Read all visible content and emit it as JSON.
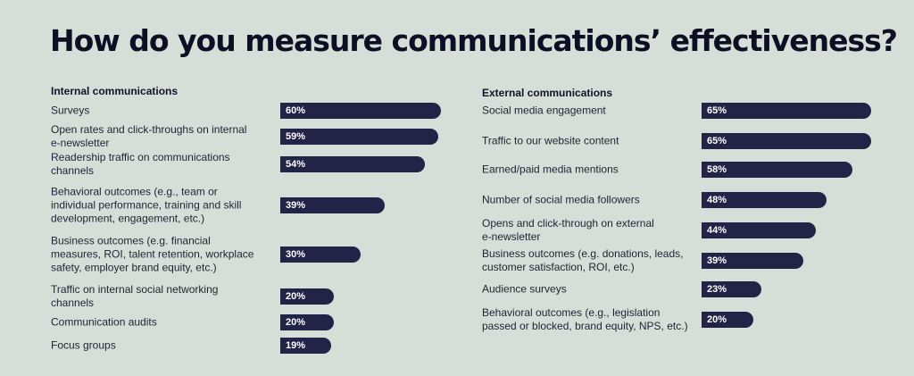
{
  "title": "How do you measure communications’ effectiveness?",
  "chart_data": [
    {
      "type": "bar",
      "title": "Internal communications",
      "categories": [
        "Surveys",
        "Open rates and click-throughs on internal\ne-newsletter",
        "Readership traffic on communications\nchannels",
        "Behavioral outcomes (e.g., team or\nindividual performance, training and skill\ndevelopment, engagement, etc.)",
        "Business outcomes (e.g. financial\nmeasures, ROI, talent retention, workplace\nsafety, employer brand equity, etc.)",
        "Traffic on internal social networking\nchannels",
        "Communication audits",
        "Focus groups"
      ],
      "values": [
        60,
        59,
        54,
        39,
        30,
        20,
        20,
        19
      ],
      "value_labels": [
        "60%",
        "59%",
        "54%",
        "39%",
        "30%",
        "20%",
        "20%",
        "19%"
      ],
      "colors": {
        "bar": "#212347",
        "label": "#ffffff"
      }
    },
    {
      "type": "bar",
      "title": "External communications",
      "categories": [
        "Social media engagement",
        "Traffic to our website content",
        "Earned/paid media mentions",
        "Number of social media followers",
        "Opens and click-through on external\ne-newsletter",
        "Business outcomes (e.g. donations, leads,\ncustomer satisfaction, ROI, etc.)",
        "Audience surveys",
        "Behavioral outcomes (e.g., legislation\npassed or blocked, brand equity, NPS, etc.)"
      ],
      "values": [
        65,
        65,
        58,
        48,
        44,
        39,
        23,
        20
      ],
      "value_labels": [
        "65%",
        "65%",
        "58%",
        "48%",
        "44%",
        "39%",
        "23%",
        "20%"
      ],
      "colors": {
        "bar": "#212347",
        "label": "#ffffff"
      }
    }
  ]
}
